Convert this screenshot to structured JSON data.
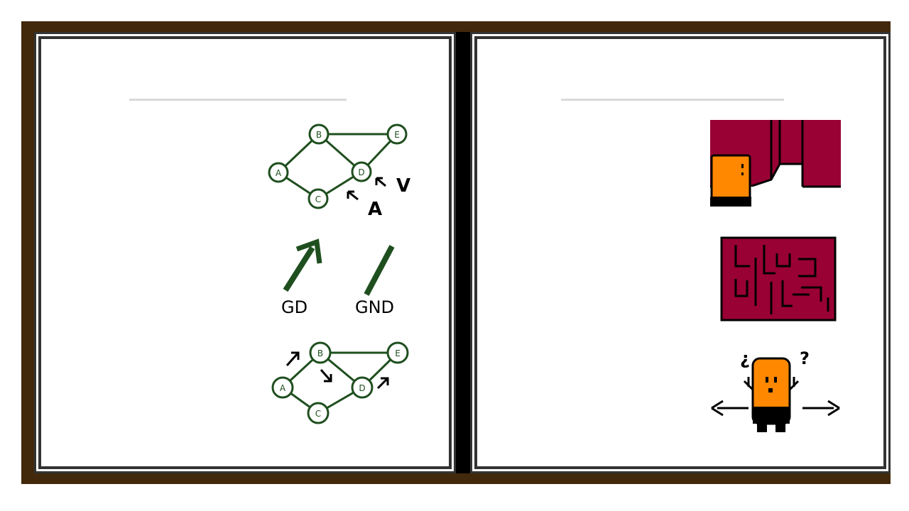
{
  "left_page": {
    "heading": "",
    "graph_top": {
      "nodes": [
        "A",
        "B",
        "C",
        "D",
        "E"
      ],
      "annotations": [
        "V",
        "A"
      ]
    },
    "icons": {
      "gd_label": "GD",
      "gnd_label": "GND"
    },
    "graph_bottom": {
      "nodes": [
        "A",
        "B",
        "C",
        "D",
        "E"
      ]
    }
  },
  "right_page": {
    "heading": "",
    "character": {
      "left_mark": "¿",
      "right_mark": "?"
    }
  },
  "colors": {
    "book_border": "#42290c",
    "page_frame": "#333333",
    "graph_green": "#1f4f1f",
    "wall_red": "#990033",
    "character_orange": "#ff8800"
  }
}
